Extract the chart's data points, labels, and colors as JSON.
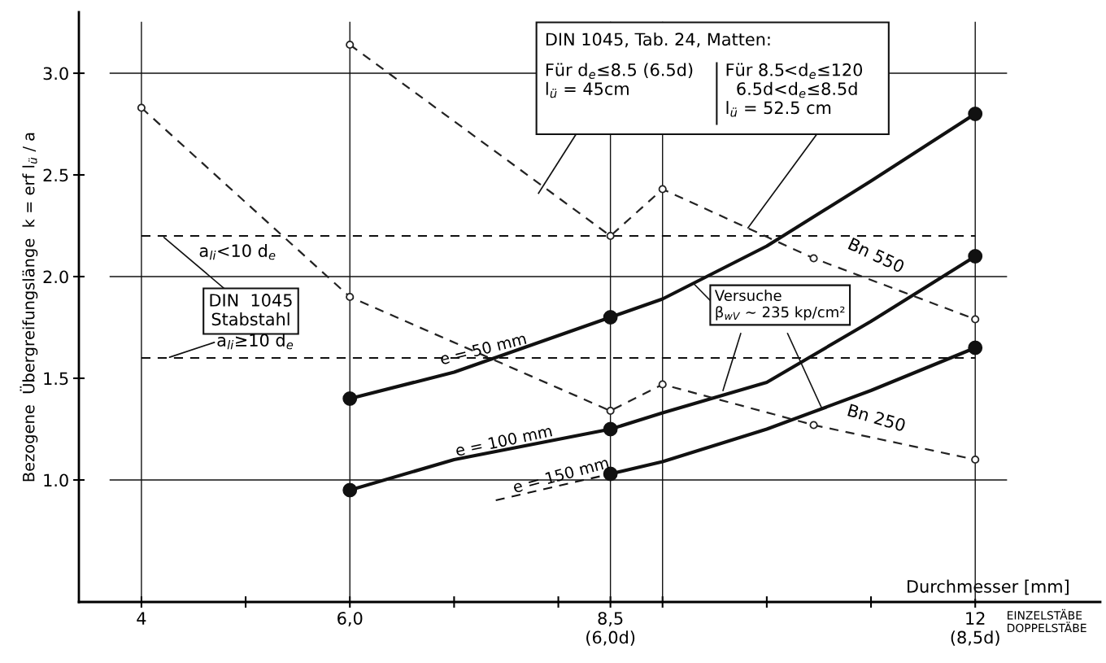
{
  "chart_data": {
    "type": "line",
    "xlabel": "Durchmesser [mm]",
    "ylabel": "Bezogene  Übergreifungslänge  k = erf l$_{ü}$ / a",
    "xlim": [
      3.4,
      13.2
    ],
    "ylim": [
      0.4,
      3.3
    ],
    "xticks": [
      4,
      {
        "value": 5,
        "label": null
      },
      {
        "value": 6,
        "label": "6,0"
      },
      {
        "value": 7,
        "label": null
      },
      {
        "value": 8,
        "label": null
      },
      {
        "value": 8.5,
        "label": "8,5\n(6,0d)"
      },
      {
        "value": 9,
        "label": null
      },
      {
        "value": 10,
        "label": null
      },
      {
        "value": 11,
        "label": null
      },
      {
        "value": 12,
        "label": "12\n(8,5d)"
      }
    ],
    "yticks": [
      {
        "value": 1,
        "label": "1.0"
      },
      1.5,
      {
        "value": 2,
        "label": "2.0"
      },
      2.5,
      {
        "value": 3,
        "label": "3.0"
      }
    ],
    "grid": false,
    "series": [
      {
        "name": "e = 50 mm",
        "color": "#111111",
        "line_style": "solid",
        "x": [
          6,
          7,
          8.5,
          9,
          10,
          11,
          12
        ],
        "values": [
          1.4,
          1.53,
          1.8,
          1.89,
          2.15,
          2.47,
          2.8
        ]
      },
      {
        "name": "e = 100 mm",
        "color": "#111111",
        "line_style": "solid",
        "x": [
          6,
          7,
          8.5,
          9,
          10,
          11,
          12
        ],
        "values": [
          0.95,
          1.1,
          1.25,
          1.33,
          1.48,
          1.78,
          2.1
        ]
      },
      {
        "name": "e = 150 mm",
        "color": "#111111",
        "line_style": "solid",
        "x": [
          8.5,
          9,
          10,
          11,
          12
        ],
        "values": [
          1.03,
          1.09,
          1.25,
          1.44,
          1.65
        ]
      },
      {
        "color": "#111111",
        "line_style": "dashed",
        "x": [
          7.4,
          8.5
        ],
        "values": [
          0.9,
          1.03
        ]
      },
      {
        "type": "scatter",
        "color": "#111111",
        "marker": "circle",
        "x": [
          6,
          8.5,
          12,
          6,
          8.5,
          12,
          8.5,
          12
        ],
        "values": [
          1.4,
          1.8,
          2.8,
          0.95,
          1.25,
          2.1,
          1.03,
          1.65
        ]
      },
      {
        "name": "Bn 550",
        "color": "#222222",
        "line_style": "dashed",
        "marker": "circle",
        "x": [
          6,
          8.5,
          9,
          10.45,
          12
        ],
        "values": [
          3.14,
          2.2,
          2.43,
          2.09,
          1.79
        ]
      },
      {
        "name": "Bn 250",
        "color": "#222222",
        "line_style": "dashed",
        "marker": "circle",
        "x": [
          4,
          6,
          8.5,
          9,
          10.45,
          12
        ],
        "values": [
          2.83,
          1.9,
          1.34,
          1.47,
          1.27,
          1.1
        ]
      }
    ],
    "ref_lines": [
      {
        "axis": "y",
        "value": 1.0,
        "line_style": "solid"
      },
      {
        "axis": "y",
        "value": 2.0,
        "line_style": "solid"
      },
      {
        "axis": "y",
        "value": 3.0,
        "line_style": "solid"
      },
      {
        "axis": "y",
        "value": 2.2,
        "line_style": "dashed"
      },
      {
        "axis": "y",
        "value": 1.6,
        "line_style": "dashed"
      },
      {
        "axis": "x",
        "value": 4,
        "line_style": "solid"
      },
      {
        "axis": "x",
        "value": 6,
        "line_style": "solid"
      },
      {
        "axis": "x",
        "value": 8.5,
        "line_style": "solid"
      },
      {
        "axis": "x",
        "value": 9,
        "line_style": "solid"
      },
      {
        "axis": "x",
        "value": 12,
        "line_style": "solid"
      }
    ],
    "annotations": [
      "DIN 1045, Tab. 24, Matten:",
      "Für d$_{e}$≤8.5 (6.5d)\nl$_{ü}$ = 45cm",
      "Für 8.5<d$_{e}$≤120\n  6.5d<d$_{e}$≤8.5d\nl$_{ü}$ = 52.5 cm",
      "a$_{li}$<10 d$_{e}$",
      {
        "text": "DIN  1045\nStabstahl",
        "x": 4.2,
        "y": 2.2
      },
      {
        "text": "a$_{li}$≥10 d$_{e}$",
        "x": 4.25,
        "y": 1.6
      },
      {
        "text": "Versuche\nβ$_{wV}$ ~ 235 kp/cm²",
        "x": 9.29,
        "y": 1.97
      },
      "EINZELSTÄBE\nDOPPELSTÄBE"
    ]
  }
}
